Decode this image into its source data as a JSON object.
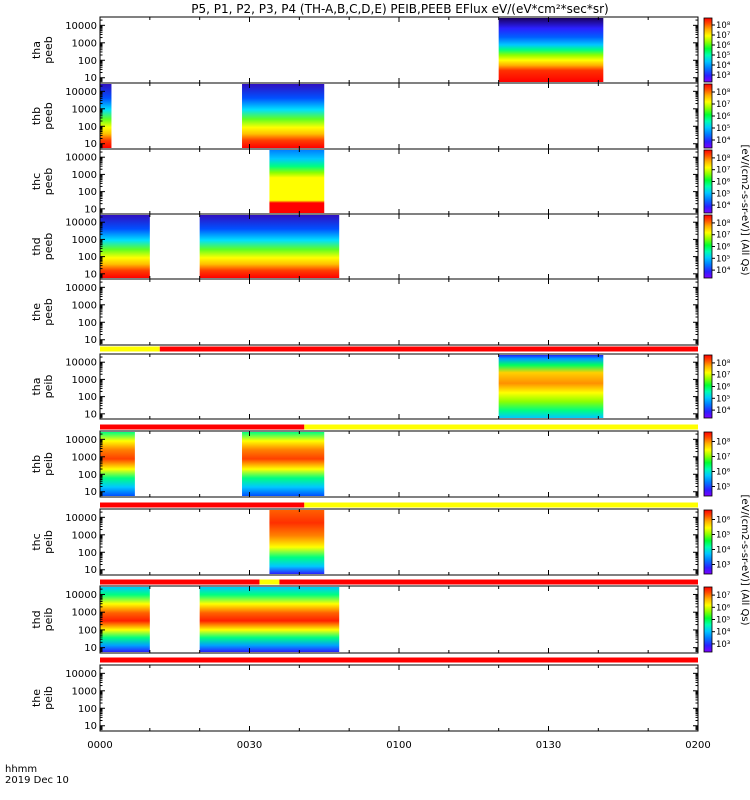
{
  "title": "P5, P1, P2, P3, P4 (TH-A,B,C,D,E) PEIB,PEEB EFlux eV/(eV*cm²*sec*sr)",
  "time_axis": {
    "label": "hhmm",
    "date": "2019 Dec 10"
  },
  "colorbar_labels": {
    "electron": "[eV/(cm2-s-sr-eV)] (All Qs)",
    "ion": "[eV/(cm2-s-sr-eV)] (All Qs)"
  },
  "colors": {
    "flag_red": "#ff0000",
    "flag_yellow": "#ffff00",
    "colormap": [
      "#7f00ff",
      "#2a20ff",
      "#0080ff",
      "#00c8ff",
      "#00ffb0",
      "#00ff30",
      "#8cff00",
      "#ffff00",
      "#ffb000",
      "#ff5000",
      "#ff0000"
    ]
  },
  "chart_data": [
    {
      "type": "heatmap",
      "panel": "tha_peeb",
      "ylabel": "tha peeb",
      "x_ticks": [
        "0000",
        "0030",
        "0100",
        "0130",
        "0200"
      ],
      "y_ticks": [
        "10",
        "100",
        "1000",
        "10000"
      ],
      "y_scale": "log",
      "ylim": [
        5,
        30000
      ],
      "colorbar_ticks": [
        "10³",
        "10⁴",
        "10⁵",
        "10⁶",
        "10⁷",
        "10⁸"
      ],
      "data_segments": [
        {
          "start_min": 80,
          "end_min": 101
        }
      ],
      "flag_bar": null
    },
    {
      "type": "heatmap",
      "panel": "thb_peeb",
      "ylabel": "thb peeb",
      "x_ticks": [
        "0000",
        "0030",
        "0100",
        "0130",
        "0200"
      ],
      "y_ticks": [
        "10",
        "100",
        "1000",
        "10000"
      ],
      "y_scale": "log",
      "ylim": [
        5,
        30000
      ],
      "colorbar_ticks": [
        "10⁴",
        "10⁵",
        "10⁶",
        "10⁷",
        "10⁸"
      ],
      "data_segments": [
        {
          "start_min": 0,
          "end_min": 2.3
        },
        {
          "start_min": 28.5,
          "end_min": 45
        }
      ],
      "flag_bar": null
    },
    {
      "type": "heatmap",
      "panel": "thc_peeb",
      "ylabel": "thc peeb",
      "x_ticks": [
        "0000",
        "0030",
        "0100",
        "0130",
        "0200"
      ],
      "y_ticks": [
        "10",
        "100",
        "1000",
        "10000"
      ],
      "y_scale": "log",
      "ylim": [
        5,
        30000
      ],
      "colorbar_ticks": [
        "10⁴",
        "10⁵",
        "10⁶",
        "10⁷",
        "10⁸"
      ],
      "data_segments": [
        {
          "start_min": 34,
          "end_min": 45
        }
      ],
      "flag_bar": null
    },
    {
      "type": "heatmap",
      "panel": "thd_peeb",
      "ylabel": "thd peeb",
      "x_ticks": [
        "0000",
        "0030",
        "0100",
        "0130",
        "0200"
      ],
      "y_ticks": [
        "10",
        "100",
        "1000",
        "10000"
      ],
      "y_scale": "log",
      "ylim": [
        5,
        30000
      ],
      "colorbar_ticks": [
        "10⁴",
        "10⁵",
        "10⁶",
        "10⁷",
        "10⁸"
      ],
      "data_segments": [
        {
          "start_min": 0,
          "end_min": 10
        },
        {
          "start_min": 20,
          "end_min": 48
        }
      ],
      "flag_bar": null
    },
    {
      "type": "heatmap",
      "panel": "the_peeb",
      "ylabel": "the peeb",
      "x_ticks": [
        "0000",
        "0030",
        "0100",
        "0130",
        "0200"
      ],
      "y_ticks": [
        "10",
        "100",
        "1000",
        "10000"
      ],
      "y_scale": "log",
      "ylim": [
        5,
        30000
      ],
      "colorbar_ticks": [],
      "data_segments": [],
      "flag_bar": [
        {
          "start_min": 0,
          "end_min": 12,
          "color": "yellow"
        },
        {
          "start_min": 12,
          "end_min": 120,
          "color": "red"
        }
      ]
    },
    {
      "type": "heatmap",
      "panel": "tha_peib",
      "ylabel": "tha peib",
      "x_ticks": [
        "0000",
        "0030",
        "0100",
        "0130",
        "0200"
      ],
      "y_ticks": [
        "10",
        "100",
        "1000",
        "10000"
      ],
      "y_scale": "log",
      "ylim": [
        5,
        30000
      ],
      "colorbar_ticks": [
        "10⁴",
        "10⁵",
        "10⁶",
        "10⁷",
        "10⁸"
      ],
      "data_segments": [
        {
          "start_min": 80,
          "end_min": 101
        }
      ],
      "flag_bar": [
        {
          "start_min": 0,
          "end_min": 41,
          "color": "red"
        },
        {
          "start_min": 41,
          "end_min": 120,
          "color": "yellow"
        }
      ]
    },
    {
      "type": "heatmap",
      "panel": "thb_peib",
      "ylabel": "thb peib",
      "x_ticks": [
        "0000",
        "0030",
        "0100",
        "0130",
        "0200"
      ],
      "y_ticks": [
        "10",
        "100",
        "1000",
        "10000"
      ],
      "y_scale": "log",
      "ylim": [
        5,
        30000
      ],
      "colorbar_ticks": [
        "10⁵",
        "10⁶",
        "10⁷",
        "10⁸"
      ],
      "data_segments": [
        {
          "start_min": 0,
          "end_min": 7
        },
        {
          "start_min": 28.5,
          "end_min": 45
        }
      ],
      "flag_bar": [
        {
          "start_min": 0,
          "end_min": 41,
          "color": "red"
        },
        {
          "start_min": 41,
          "end_min": 120,
          "color": "yellow"
        }
      ]
    },
    {
      "type": "heatmap",
      "panel": "thc_peib",
      "ylabel": "thc peib",
      "x_ticks": [
        "0000",
        "0030",
        "0100",
        "0130",
        "0200"
      ],
      "y_ticks": [
        "10",
        "100",
        "1000",
        "10000"
      ],
      "y_scale": "log",
      "ylim": [
        5,
        30000
      ],
      "colorbar_ticks": [
        "10³",
        "10⁴",
        "10⁵",
        "10⁶"
      ],
      "data_segments": [
        {
          "start_min": 34,
          "end_min": 45
        }
      ],
      "flag_bar": [
        {
          "start_min": 0,
          "end_min": 32,
          "color": "red"
        },
        {
          "start_min": 32,
          "end_min": 36,
          "color": "yellow"
        },
        {
          "start_min": 36,
          "end_min": 120,
          "color": "red"
        }
      ]
    },
    {
      "type": "heatmap",
      "panel": "thd_peib",
      "ylabel": "thd peib",
      "x_ticks": [
        "0000",
        "0030",
        "0100",
        "0130",
        "0200"
      ],
      "y_ticks": [
        "10",
        "100",
        "1000",
        "10000"
      ],
      "y_scale": "log",
      "ylim": [
        5,
        30000
      ],
      "colorbar_ticks": [
        "10³",
        "10⁴",
        "10⁵",
        "10⁶",
        "10⁷"
      ],
      "data_segments": [
        {
          "start_min": 0,
          "end_min": 10
        },
        {
          "start_min": 20,
          "end_min": 48
        }
      ],
      "flag_bar": [
        {
          "start_min": 0,
          "end_min": 120,
          "color": "red"
        }
      ]
    },
    {
      "type": "heatmap",
      "panel": "the_peib",
      "ylabel": "the peib",
      "x_ticks": [
        "0000",
        "0030",
        "0100",
        "0130",
        "0200"
      ],
      "y_ticks": [
        "10",
        "100",
        "1000",
        "10000"
      ],
      "y_scale": "log",
      "ylim": [
        5,
        30000
      ],
      "colorbar_ticks": [],
      "data_segments": [],
      "flag_bar": null
    }
  ]
}
